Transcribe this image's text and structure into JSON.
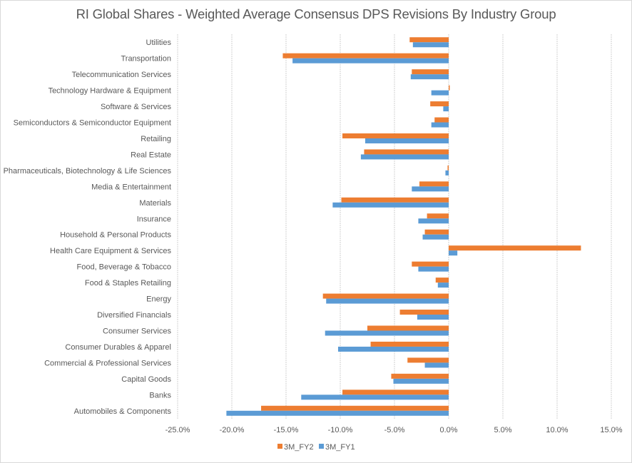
{
  "chart_data": {
    "type": "bar",
    "orientation": "horizontal",
    "title": "RI Global Shares - Weighted Average Consensus DPS Revisions By Industry Group",
    "xlabel": "",
    "ylabel": "",
    "xlim": [
      -25.0,
      15.0
    ],
    "x_ticks": [
      -25,
      -20,
      -15,
      -10,
      -5,
      0,
      5,
      10,
      15
    ],
    "x_tick_labels": [
      "-25.0%",
      "-20.0%",
      "-15.0%",
      "-10.0%",
      "-5.0%",
      "0.0%",
      "5.0%",
      "10.0%",
      "15.0%"
    ],
    "grid": "vertical dashed",
    "legend_position": "bottom",
    "categories": [
      "Utilities",
      "Transportation",
      "Telecommunication Services",
      "Technology Hardware & Equipment",
      "Software & Services",
      "Semiconductors & Semiconductor Equipment",
      "Retailing",
      "Real Estate",
      "Pharmaceuticals, Biotechnology & Life Sciences",
      "Media & Entertainment",
      "Materials",
      "Insurance",
      "Household & Personal Products",
      "Health Care Equipment & Services",
      "Food, Beverage & Tobacco",
      "Food & Staples Retailing",
      "Energy",
      "Diversified Financials",
      "Consumer Services",
      "Consumer Durables & Apparel",
      "Commercial & Professional Services",
      "Capital Goods",
      "Banks",
      "Automobiles & Components"
    ],
    "series": [
      {
        "name": "3M_FY2",
        "color": "#ed7d31",
        "values": [
          -3.6,
          -15.3,
          -3.4,
          0.1,
          -1.7,
          -1.3,
          -9.8,
          -7.8,
          -0.1,
          -2.7,
          -9.9,
          -2.0,
          -2.2,
          12.2,
          -3.4,
          -1.2,
          -11.6,
          -4.5,
          -7.5,
          -7.2,
          -3.8,
          -5.3,
          -9.8,
          -17.3
        ]
      },
      {
        "name": "3M_FY1",
        "color": "#5b9bd5",
        "values": [
          -3.3,
          -14.4,
          -3.5,
          -1.6,
          -0.5,
          -1.6,
          -7.7,
          -8.1,
          -0.3,
          -3.4,
          -10.7,
          -2.8,
          -2.4,
          0.8,
          -2.8,
          -1.0,
          -11.3,
          -2.9,
          -11.4,
          -10.2,
          -2.2,
          -5.1,
          -13.6,
          -20.5
        ]
      }
    ],
    "legend": [
      "3M_FY2",
      "3M_FY1"
    ]
  }
}
